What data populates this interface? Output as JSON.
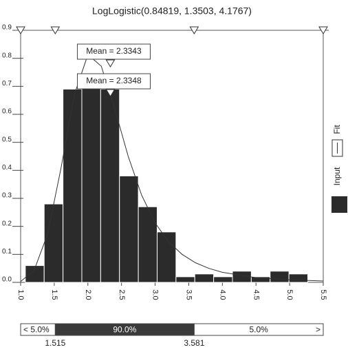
{
  "chart_data": {
    "type": "histogram",
    "title": "LogLogistic(0.84819, 1.3503, 4.1767)",
    "bins": [
      1.07,
      1.35,
      1.63,
      1.91,
      2.19,
      2.47,
      2.75,
      3.03,
      3.31,
      3.59,
      3.87,
      4.15,
      4.43,
      4.71,
      4.99,
      5.27
    ],
    "series": [
      {
        "name": "Input",
        "color": "#2b2b2b",
        "values": [
          0.06,
          0.28,
          0.69,
          0.72,
          0.69,
          0.38,
          0.27,
          0.18,
          0.02,
          0.03,
          0.02,
          0.04,
          0.02,
          0.04,
          0.03
        ]
      }
    ],
    "fit_curve": {
      "name": "Fit",
      "color": "#333333",
      "x": [
        1.0,
        1.2,
        1.4,
        1.6,
        1.8,
        2.0,
        2.2,
        2.4,
        2.6,
        2.8,
        3.0,
        3.2,
        3.4,
        3.6,
        3.8,
        4.0,
        4.5,
        5.0,
        5.5
      ],
      "values": [
        0.003,
        0.043,
        0.172,
        0.408,
        0.671,
        0.813,
        0.772,
        0.619,
        0.45,
        0.311,
        0.212,
        0.145,
        0.1,
        0.07,
        0.05,
        0.036,
        0.017,
        0.009,
        0.005
      ]
    },
    "mean_markers": [
      {
        "value": 2.3343,
        "label": "Mean = 2.3343"
      },
      {
        "value": 2.3348,
        "label": "Mean = 2.3348"
      }
    ],
    "xlim": [
      1.0,
      5.5
    ],
    "ylim": [
      0,
      0.9
    ],
    "xticks": [
      {
        "value": 1,
        "label": "1.0"
      },
      1.5,
      {
        "value": 2,
        "label": "2.0"
      },
      2.5,
      {
        "value": 3,
        "label": "3.0"
      },
      3.5,
      {
        "value": 4,
        "label": "4.0"
      },
      4.5,
      {
        "value": 5,
        "label": "5.0"
      },
      5.5
    ],
    "yticks": [
      {
        "value": 0,
        "label": "0.0"
      },
      0.1,
      0.2,
      0.3,
      0.4,
      0.5,
      0.6,
      0.7,
      0.8,
      0.9
    ],
    "delimiters": [
      {
        "value": 1.515,
        "label": "1.515"
      },
      {
        "value": 3.581,
        "label": "3.581"
      }
    ],
    "regions": [
      {
        "value": 5,
        "label": "< 5.0%"
      },
      {
        "value": 90,
        "label": "90.0%"
      },
      {
        "value": 5,
        "label": "5.0%"
      }
    ],
    "right_arrow": ">"
  }
}
